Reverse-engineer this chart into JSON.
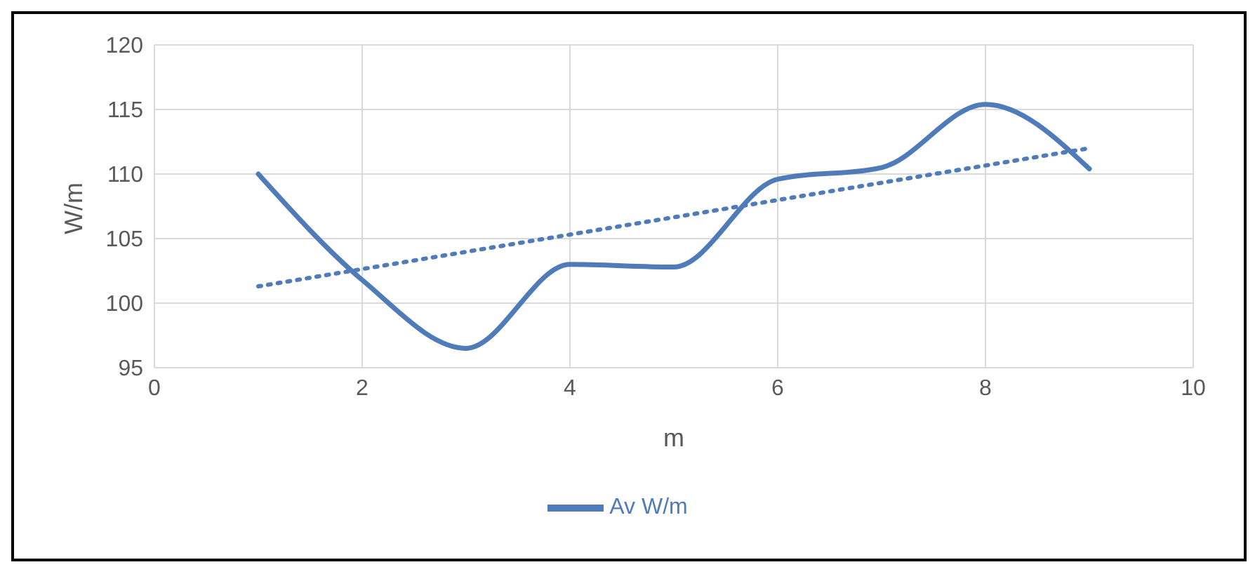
{
  "chart_data": {
    "type": "line",
    "xlabel": "m",
    "ylabel": "W/m",
    "x": [
      1,
      2,
      3,
      4,
      5,
      6,
      7,
      8,
      9
    ],
    "series": [
      {
        "name": "Av W/m",
        "color": "#4f7bb8",
        "values": [
          110,
          101.8,
          96.5,
          103,
          102.8,
          109.6,
          110.5,
          115.4,
          110.4
        ]
      },
      {
        "type": "line",
        "color": "#4f7bb8",
        "line_style": "dotted",
        "x": [
          1,
          9
        ],
        "values": [
          101.3,
          112
        ]
      }
    ],
    "xlim": [
      0,
      10
    ],
    "xticks": [
      0,
      2,
      4,
      6,
      8,
      10
    ],
    "ylim": [
      95,
      120
    ],
    "yticks": [
      95,
      100,
      105,
      110,
      115,
      120
    ],
    "grid": true,
    "legend": "bottom",
    "marker": "none",
    "line_style": "solid"
  }
}
